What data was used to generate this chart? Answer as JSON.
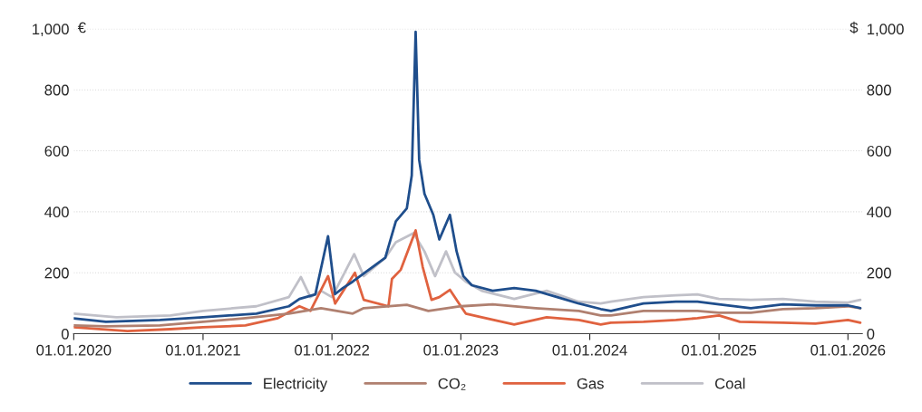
{
  "chart_data": {
    "type": "line",
    "ylabel": "€",
    "y2label": "$",
    "xlim": [
      "2020-01-01",
      "2026-02-10"
    ],
    "xticks": [
      {
        "value": "2020-01-01",
        "label": "01.01.2020"
      },
      {
        "value": "2021-01-01",
        "label": "01.01.2021"
      },
      {
        "value": "2022-01-01",
        "label": "01.01.2022"
      },
      {
        "value": "2023-01-01",
        "label": "01.01.2023"
      },
      {
        "value": "2024-01-01",
        "label": "01.01.2024"
      },
      {
        "value": "2025-01-01",
        "label": "01.01.2025"
      },
      {
        "value": "2026-01-01",
        "label": "01.01.2026"
      }
    ],
    "ylim": [
      0,
      1000
    ],
    "yticks": [
      0,
      200,
      400,
      600,
      800,
      {
        "value": 1000,
        "label": "1,000"
      }
    ],
    "y2lim": [
      0,
      1000
    ],
    "y2ticks": [
      0,
      200,
      400,
      600,
      800,
      {
        "value": 1000,
        "label": "1,000"
      }
    ],
    "grid": "y",
    "legend": "bottom",
    "marker": "none",
    "line_style": "solid",
    "series": [
      {
        "name": "Electricity",
        "color": "#1f4e8c",
        "x": [
          "2020-01-01",
          "2020-04-01",
          "2020-09-01",
          "2021-01-01",
          "2021-06-01",
          "2021-09-01",
          "2021-10-01",
          "2021-11-15",
          "2021-12-21",
          "2022-01-10",
          "2022-02-01",
          "2022-03-01",
          "2022-06-01",
          "2022-07-01",
          "2022-08-01",
          "2022-08-15",
          "2022-08-26",
          "2022-09-05",
          "2022-09-20",
          "2022-10-15",
          "2022-11-01",
          "2022-12-01",
          "2022-12-20",
          "2023-01-08",
          "2023-02-01",
          "2023-04-01",
          "2023-06-01",
          "2023-08-01",
          "2023-10-01",
          "2023-12-01",
          "2024-02-01",
          "2024-03-01",
          "2024-06-01",
          "2024-09-01",
          "2024-11-01",
          "2025-01-01",
          "2025-04-01",
          "2025-07-01",
          "2025-10-01",
          "2026-01-01",
          "2026-02-05"
        ],
        "values": [
          50,
          39,
          45,
          54,
          66,
          90,
          114,
          129,
          320,
          130,
          150,
          171,
          249,
          369,
          411,
          519,
          990,
          570,
          459,
          390,
          309,
          390,
          270,
          189,
          159,
          141,
          150,
          141,
          120,
          99,
          81,
          75,
          99,
          105,
          105,
          96,
          84,
          96,
          93,
          93,
          84
        ]
      },
      {
        "name": "CO₂",
        "color": "#b08070",
        "x": [
          "2020-01-01",
          "2020-04-01",
          "2020-09-01",
          "2021-01-01",
          "2021-05-01",
          "2021-09-01",
          "2021-12-01",
          "2022-03-01",
          "2022-04-01",
          "2022-08-01",
          "2022-10-01",
          "2023-01-01",
          "2023-04-01",
          "2023-08-01",
          "2023-12-01",
          "2024-02-01",
          "2024-03-01",
          "2024-06-01",
          "2024-11-01",
          "2025-01-01",
          "2025-04-01",
          "2025-07-01",
          "2025-10-01",
          "2026-01-01",
          "2026-02-05"
        ],
        "values": [
          27,
          24,
          27,
          39,
          51,
          66,
          84,
          66,
          84,
          95,
          75,
          90,
          96,
          84,
          75,
          60,
          60,
          75,
          75,
          69,
          69,
          81,
          84,
          90,
          84
        ]
      },
      {
        "name": "Gas",
        "color": "#e0623f",
        "x": [
          "2020-01-01",
          "2020-06-01",
          "2020-10-01",
          "2021-01-01",
          "2021-05-01",
          "2021-08-01",
          "2021-10-01",
          "2021-11-01",
          "2021-12-21",
          "2022-01-10",
          "2022-03-07",
          "2022-04-01",
          "2022-06-10",
          "2022-06-20",
          "2022-07-15",
          "2022-08-26",
          "2022-09-15",
          "2022-10-10",
          "2022-11-01",
          "2022-12-01",
          "2023-01-15",
          "2023-03-01",
          "2023-06-01",
          "2023-09-01",
          "2023-12-01",
          "2024-02-01",
          "2024-03-01",
          "2024-06-01",
          "2024-09-01",
          "2024-11-01",
          "2025-01-01",
          "2025-03-01",
          "2025-07-01",
          "2025-10-01",
          "2026-01-01",
          "2026-02-05"
        ],
        "values": [
          21,
          9,
          15,
          21,
          27,
          51,
          90,
          75,
          189,
          99,
          200,
          111,
          90,
          180,
          210,
          339,
          219,
          111,
          120,
          144,
          66,
          54,
          30,
          54,
          45,
          30,
          36,
          39,
          45,
          51,
          60,
          39,
          36,
          33,
          45,
          36
        ]
      },
      {
        "name": "Coal",
        "color": "#c0c0c8",
        "axis": "y2",
        "x": [
          "2020-01-01",
          "2020-05-01",
          "2020-10-01",
          "2021-01-01",
          "2021-06-01",
          "2021-09-01",
          "2021-10-05",
          "2021-11-01",
          "2021-12-01",
          "2022-01-01",
          "2022-03-05",
          "2022-04-01",
          "2022-06-01",
          "2022-07-01",
          "2022-08-20",
          "2022-09-20",
          "2022-10-20",
          "2022-11-20",
          "2022-12-15",
          "2023-01-15",
          "2023-03-01",
          "2023-06-01",
          "2023-09-01",
          "2023-12-01",
          "2024-02-01",
          "2024-03-01",
          "2024-06-01",
          "2024-09-01",
          "2024-11-01",
          "2025-01-01",
          "2025-04-01",
          "2025-07-01",
          "2025-10-01",
          "2026-01-01",
          "2026-02-05"
        ],
        "values": [
          66,
          54,
          60,
          75,
          90,
          120,
          186,
          120,
          141,
          120,
          261,
          189,
          249,
          300,
          330,
          270,
          189,
          270,
          201,
          171,
          141,
          114,
          141,
          105,
          99,
          105,
          120,
          126,
          129,
          114,
          111,
          114,
          105,
          102,
          111
        ]
      }
    ]
  }
}
